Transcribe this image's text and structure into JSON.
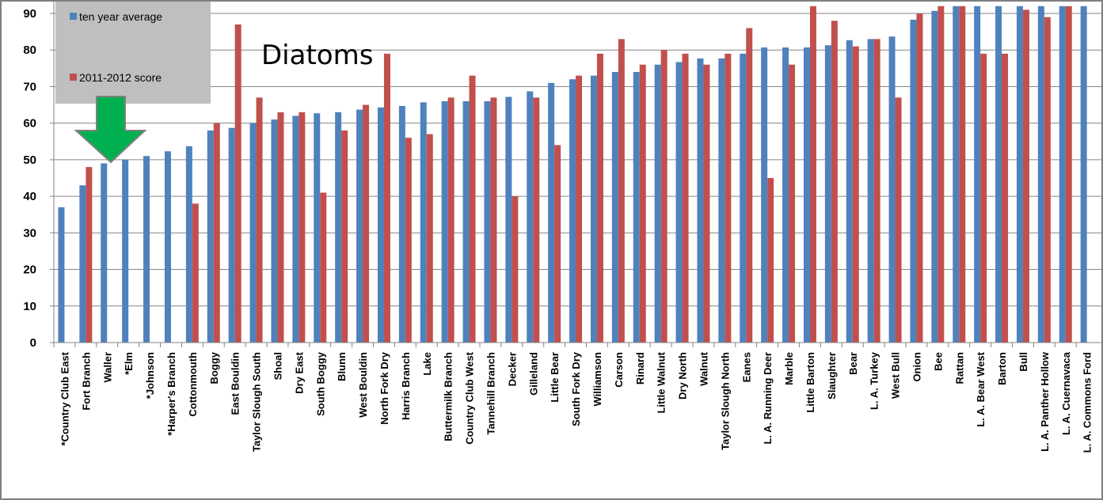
{
  "chart_data": {
    "type": "bar",
    "title": "Diatoms",
    "xlabel": "",
    "ylabel": "",
    "ylim": [
      0,
      90
    ],
    "yticks": [
      0,
      10,
      20,
      30,
      40,
      50,
      60,
      70,
      80,
      90
    ],
    "grid": true,
    "legend_position": "top-left",
    "categories": [
      "*Country Club East",
      "Fort Branch",
      "Waller",
      "*Elm",
      "*Johnson",
      "*Harper's Branch",
      "Cottonmouth",
      "Boggy",
      "East Bouldin",
      "Taylor Slough South",
      "Shoal",
      "Dry East",
      "South Boggy",
      "Blunn",
      "West Bouldin",
      "North Fork Dry",
      "Harris Branch",
      "Lake",
      "Buttermilk Branch",
      "Country Club West",
      "Tannehill Branch",
      "Decker",
      "Gilleland",
      "Little Bear",
      "South Fork Dry",
      "Williamson",
      "Carson",
      "Rinard",
      "Little Walnut",
      "Dry North",
      "Walnut",
      "Taylor Slough North",
      "Eanes",
      "L. A. Running Deer",
      "Marble",
      "Little Barton",
      "Slaughter",
      "Bear",
      "L. A. Turkey",
      "West Bull",
      "Onion",
      "Bee",
      "Rattan",
      "L. A. Bear West",
      "Barton",
      "Bull",
      "L. A. Panther Hollow",
      "L. A. Cuernavaca",
      "L. A. Commons Ford"
    ],
    "series": [
      {
        "name": "ten year average",
        "color": "#4f81bd",
        "values": [
          37,
          43,
          49,
          50,
          51,
          52.3,
          53.7,
          58,
          58.7,
          60,
          61,
          62,
          62.7,
          63,
          63.7,
          64.3,
          64.7,
          65.7,
          66,
          66,
          66,
          67.2,
          68.7,
          71,
          72,
          73,
          74,
          74,
          76,
          76.7,
          77.7,
          77.7,
          79,
          80.7,
          80.7,
          80.7,
          81.3,
          82.7,
          83,
          83.7,
          88.3,
          90.7,
          92,
          92,
          92,
          92,
          92,
          92,
          92
        ]
      },
      {
        "name": "2011-2012 score",
        "color": "#c0504d",
        "values": [
          null,
          48,
          null,
          null,
          null,
          null,
          38,
          60,
          87,
          67,
          63,
          63,
          41,
          58,
          65,
          79,
          56,
          57,
          67,
          73,
          67,
          40,
          67,
          54,
          73,
          79,
          83,
          76,
          80,
          79,
          76,
          79,
          86,
          45,
          76,
          92,
          88,
          81,
          83,
          67,
          90,
          92,
          92,
          79,
          79,
          91,
          89,
          92,
          null
        ]
      }
    ]
  }
}
